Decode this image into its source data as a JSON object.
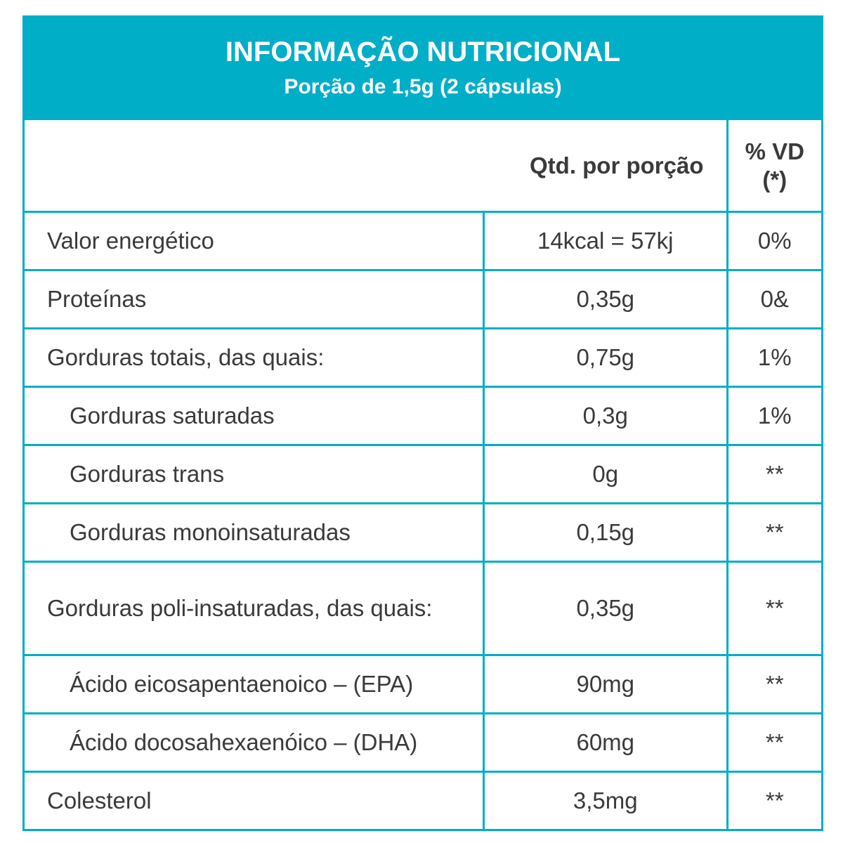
{
  "header": {
    "title": "INFORMAÇÃO NUTRICIONAL",
    "subtitle": "Porção de 1,5g (2 cápsulas)"
  },
  "columns": {
    "qty": "Qtd. por porção",
    "vd_line1": "% VD",
    "vd_line2": "(*)"
  },
  "rows": [
    {
      "name": "Valor energético",
      "qty": "14kcal = 57kj",
      "vd": "0%",
      "indent": false
    },
    {
      "name": "Proteínas",
      "qty": "0,35g",
      "vd": "0&",
      "indent": false
    },
    {
      "name": "Gorduras totais, das quais:",
      "qty": "0,75g",
      "vd": "1%",
      "indent": false
    },
    {
      "name": "Gorduras saturadas",
      "qty": "0,3g",
      "vd": "1%",
      "indent": true
    },
    {
      "name": "Gorduras trans",
      "qty": "0g",
      "vd": "**",
      "indent": true
    },
    {
      "name": "Gorduras monoinsaturadas",
      "qty": "0,15g",
      "vd": "**",
      "indent": true
    },
    {
      "name": "Gorduras poli-insaturadas, das quais:",
      "qty": "0,35g",
      "vd": "**",
      "indent": false
    },
    {
      "name": "Ácido eicosapentaenoico – (EPA)",
      "qty": "90mg",
      "vd": "**",
      "indent": true
    },
    {
      "name": "Ácido docosahexaenóico – (DHA)",
      "qty": "60mg",
      "vd": "**",
      "indent": true
    },
    {
      "name": "Colesterol",
      "qty": "3,5mg",
      "vd": "**",
      "indent": false
    }
  ],
  "colors": {
    "accent": "#00aec7",
    "text": "#3a3a3a"
  }
}
